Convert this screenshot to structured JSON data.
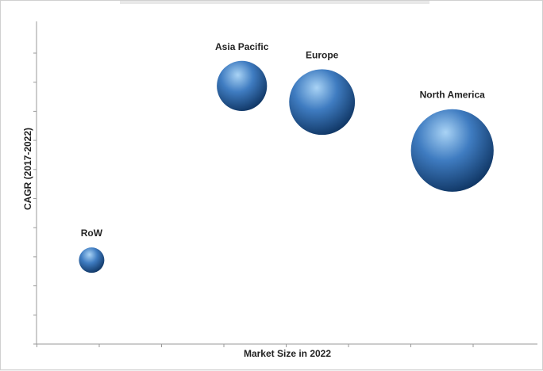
{
  "chart_data": {
    "type": "scatter",
    "variant": "bubble",
    "title": "",
    "xlabel": "Market Size in 2022",
    "ylabel": "CAGR (2017-2022)",
    "grid": false,
    "legend": "none",
    "axis_tick_labels": "none",
    "colors": {
      "bubble_light": "#a9d3f5",
      "bubble_mid": "#3f7cc1",
      "bubble_dark": "#0f3563",
      "axis": "#9a9a9a"
    },
    "xlim": [
      0,
      10
    ],
    "ylim": [
      0,
      10
    ],
    "series": [
      {
        "points": [
          {
            "label": "RoW",
            "x": 1.1,
            "y": 2.6,
            "size": 1.0
          },
          {
            "label": "Asia Pacific",
            "x": 4.1,
            "y": 8.0,
            "size": 3.9
          },
          {
            "label": "Europe",
            "x": 5.7,
            "y": 7.5,
            "size": 6.7
          },
          {
            "label": "North America",
            "x": 8.3,
            "y": 6.0,
            "size": 10.6
          }
        ]
      }
    ]
  }
}
